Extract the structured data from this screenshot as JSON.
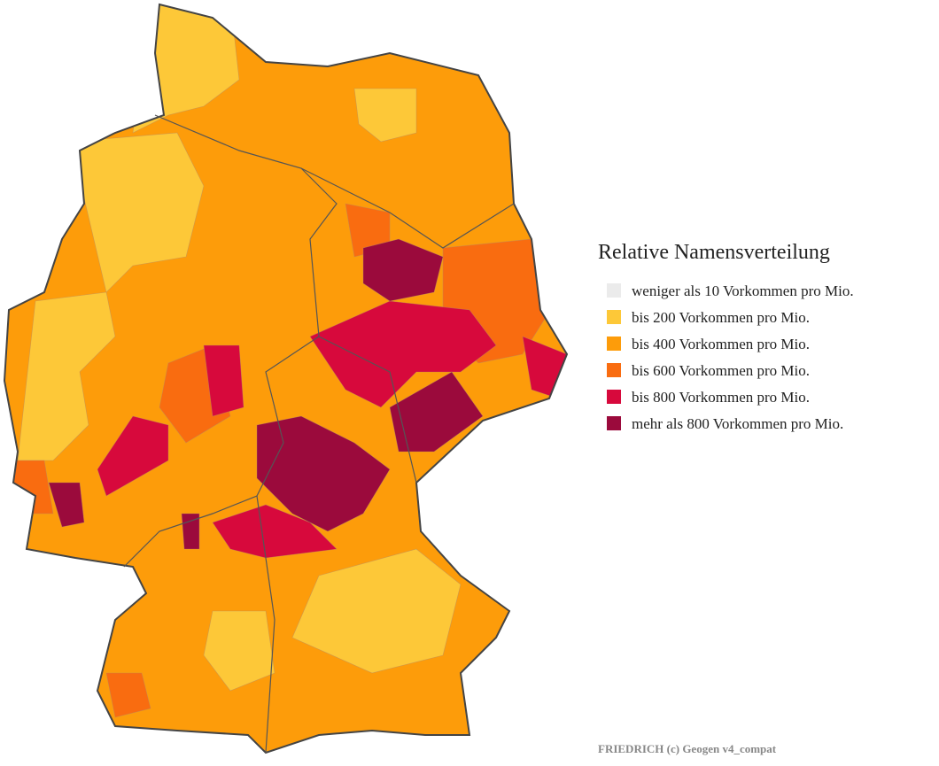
{
  "legend": {
    "title": "Relative Namensverteilung",
    "items": [
      {
        "label": "weniger als 10 Vorkommen pro Mio.",
        "color": "#ebebeb"
      },
      {
        "label": "bis 200 Vorkommen pro Mio.",
        "color": "#fdc838"
      },
      {
        "label": "bis 400 Vorkommen pro Mio.",
        "color": "#fd9c0a"
      },
      {
        "label": "bis 600 Vorkommen pro Mio.",
        "color": "#f96c10"
      },
      {
        "label": "bis 800 Vorkommen pro Mio.",
        "color": "#d7093c"
      },
      {
        "label": "mehr als 800 Vorkommen pro Mio.",
        "color": "#9b0a3c"
      }
    ]
  },
  "footer": "FRIEDRICH (c) Geogen v4_compat"
}
